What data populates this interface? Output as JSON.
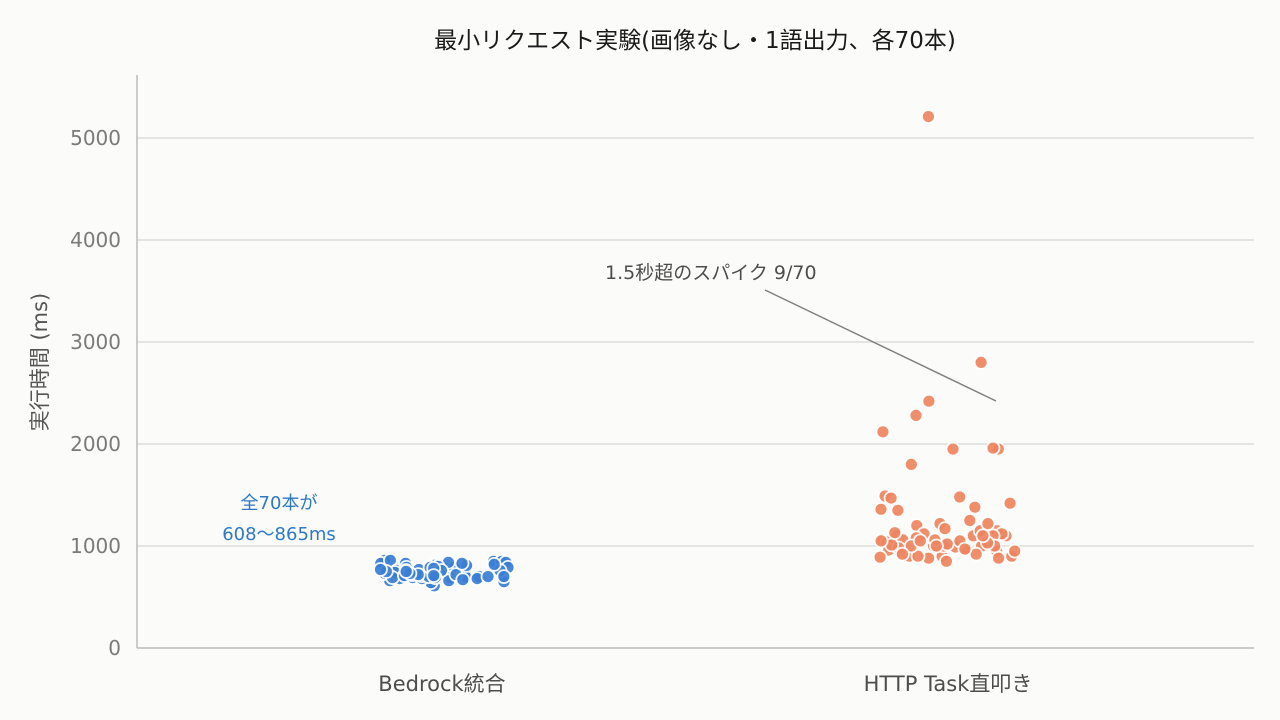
{
  "chart_data": {
    "type": "scatter",
    "title": "最小リクエスト実験(画像なし・1語出力、各70本)",
    "ylabel": "実行時間 (ms)",
    "ylim": [
      0,
      5600
    ],
    "y_ticks": [
      0,
      1000,
      2000,
      3000,
      4000,
      5000
    ],
    "grid": true,
    "categories": [
      "Bedrock統合",
      "HTTP Task直叩き"
    ],
    "series": [
      {
        "category": "Bedrock統合",
        "color": "#3a7fd5",
        "values": [
          720,
          750,
          660,
          700,
          610,
          820,
          860,
          850,
          790,
          760,
          690,
          710,
          730,
          770,
          800,
          760,
          740,
          700,
          690,
          720,
          780,
          830,
          850,
          840,
          860,
          820,
          650,
          680,
          640,
          660,
          700,
          720,
          760,
          790,
          810,
          830,
          840,
          770,
          740,
          700,
          680,
          710,
          730,
          760,
          790,
          820,
          800,
          760,
          720,
          700,
          680,
          670,
          690,
          710,
          730,
          750,
          770,
          790,
          810,
          830,
          700,
          720,
          740,
          760,
          780,
          700,
          690,
          710,
          730,
          750
        ]
      },
      {
        "category": "HTTP Task直叩き",
        "color": "#ee8560",
        "values": [
          2800,
          1350,
          1200,
          1000,
          950,
          900,
          1100,
          1150,
          1000,
          960,
          990,
          1050,
          1120,
          880,
          900,
          1000,
          1100,
          1150,
          1080,
          1420,
          1360,
          2420,
          1480,
          1220,
          1000,
          950,
          900,
          880,
          1050,
          1000,
          1100,
          1220,
          1120,
          2280,
          1060,
          1000,
          920,
          1380,
          1250,
          1950,
          1800,
          1100,
          1060,
          1490,
          1470,
          2120,
          1950,
          1960,
          1000,
          950,
          1020,
          1040,
          900,
          850,
          960,
          5210,
          1000,
          1050,
          1030,
          980,
          920,
          890,
          970,
          1010,
          1060,
          1130,
          1170,
          1000,
          1050,
          1100
        ]
      }
    ],
    "annotations": {
      "spike": "1.5秒超のスパイク 9/70",
      "bedrock_note_line1": "全70本が",
      "bedrock_note_line2": "608〜865ms"
    }
  }
}
